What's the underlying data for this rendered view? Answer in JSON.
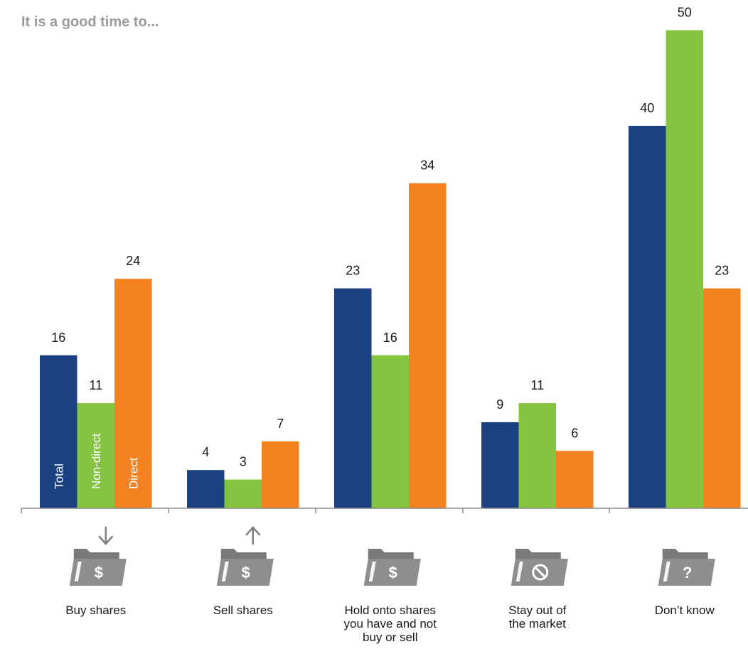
{
  "chart_data": {
    "type": "bar",
    "title": "It is a good time to...",
    "xlabel": "",
    "ylabel": "",
    "ylim": [
      0,
      50
    ],
    "grid": false,
    "legend": "inside-first-group-bars",
    "categories": [
      [
        "Buy shares"
      ],
      [
        "Sell shares"
      ],
      [
        "Hold onto shares",
        "you have and not",
        "buy or sell"
      ],
      [
        "Stay out of",
        "the market"
      ],
      [
        "Don’t know"
      ]
    ],
    "category_icons": [
      "folder-dollar-down-arrow-icon",
      "folder-dollar-up-arrow-icon",
      "folder-dollar-icon",
      "folder-no-entry-icon",
      "folder-question-icon"
    ],
    "series": [
      {
        "name": "Total",
        "color": "#1c4180",
        "values": [
          16,
          4,
          23,
          9,
          40
        ]
      },
      {
        "name": "Non-direct",
        "color": "#84c441",
        "values": [
          11,
          3,
          16,
          11,
          50
        ]
      },
      {
        "name": "Direct",
        "color": "#f58220",
        "values": [
          24,
          7,
          34,
          6,
          23
        ]
      }
    ],
    "icon_glyphs": [
      "$",
      "$",
      "$",
      "",
      "?"
    ]
  }
}
